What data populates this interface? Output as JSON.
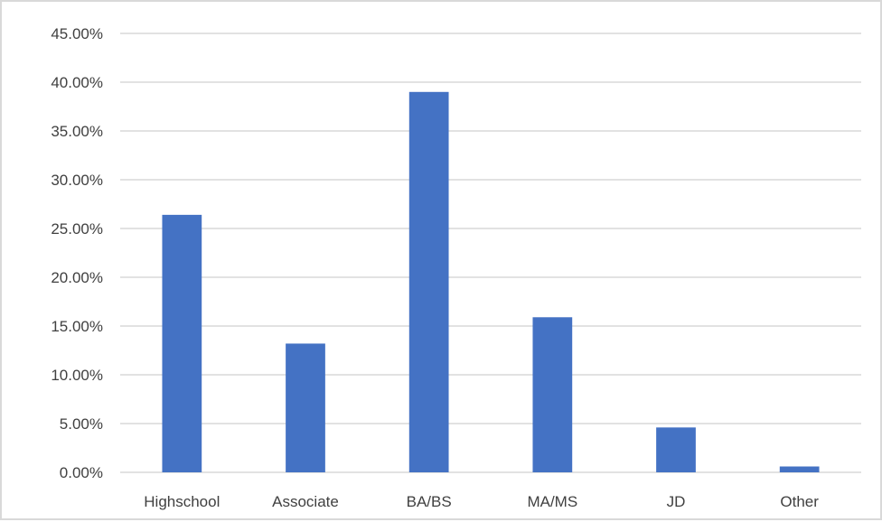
{
  "chart_data": {
    "type": "bar",
    "title": "",
    "xlabel": "",
    "ylabel": "",
    "categories": [
      "Highschool",
      "Associate",
      "BA/BS",
      "MA/MS",
      "JD",
      "Other"
    ],
    "values": [
      26.4,
      13.2,
      39.0,
      15.9,
      4.6,
      0.6
    ],
    "ylim": [
      0,
      45
    ],
    "y_ticks": [
      0,
      5,
      10,
      15,
      20,
      25,
      30,
      35,
      40,
      45
    ],
    "y_tick_format": "percent_2dp",
    "grid": true,
    "legend": "none",
    "bar_color": "#4472c4"
  }
}
